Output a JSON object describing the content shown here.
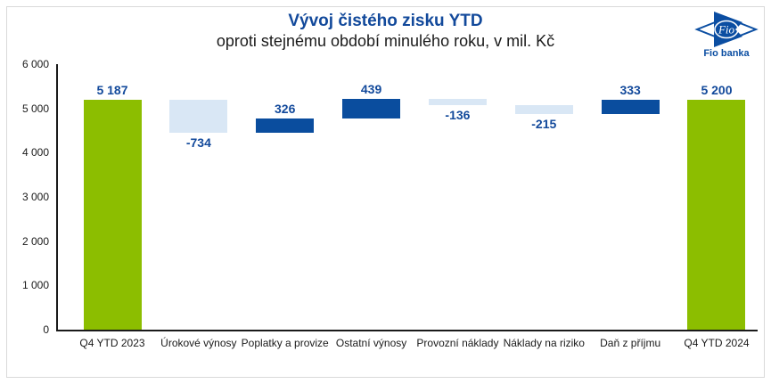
{
  "logo": {
    "wordmark": "Fio",
    "caption": "Fio banka",
    "blue": "#0B4EA2"
  },
  "chart_data": {
    "type": "bar",
    "subtype": "waterfall",
    "title": "Vývoj čistého zisku YTD",
    "subtitle": "oproti stejnému období minulého roku, v mil. Kč",
    "unit": "mil. Kč",
    "categories": [
      "Q4 YTD 2023",
      "Úrokové výnosy",
      "Poplatky a provize",
      "Ostatní výnosy",
      "Provozní náklady",
      "Náklady na riziko",
      "Daň z příjmu",
      "Q4 YTD 2024"
    ],
    "items": [
      {
        "label": "Q4 YTD 2023",
        "value": 5187,
        "display": "5 187",
        "kind": "total"
      },
      {
        "label": "Úrokové výnosy",
        "value": -734,
        "display": "-734",
        "kind": "delta"
      },
      {
        "label": "Poplatky a provize",
        "value": 326,
        "display": "326",
        "kind": "delta"
      },
      {
        "label": "Ostatní výnosy",
        "value": 439,
        "display": "439",
        "kind": "delta"
      },
      {
        "label": "Provozní náklady",
        "value": -136,
        "display": "-136",
        "kind": "delta"
      },
      {
        "label": "Náklady na riziko",
        "value": -215,
        "display": "-215",
        "kind": "delta"
      },
      {
        "label": "Daň z příjmu",
        "value": 333,
        "display": "333",
        "kind": "delta"
      },
      {
        "label": "Q4 YTD 2024",
        "value": 5200,
        "display": "5 200",
        "kind": "total"
      }
    ],
    "y_axis": {
      "min": 0,
      "max": 6000,
      "tick_step": 1000,
      "tick_labels": [
        "0",
        "1 000",
        "2 000",
        "3 000",
        "4 000",
        "5 000",
        "6 000"
      ]
    },
    "colors": {
      "total": "#8CBE00",
      "increase": "#0A4D9E",
      "decrease": "#D9E7F5",
      "value_label": "#12499B"
    },
    "legend": "none",
    "grid": false
  }
}
